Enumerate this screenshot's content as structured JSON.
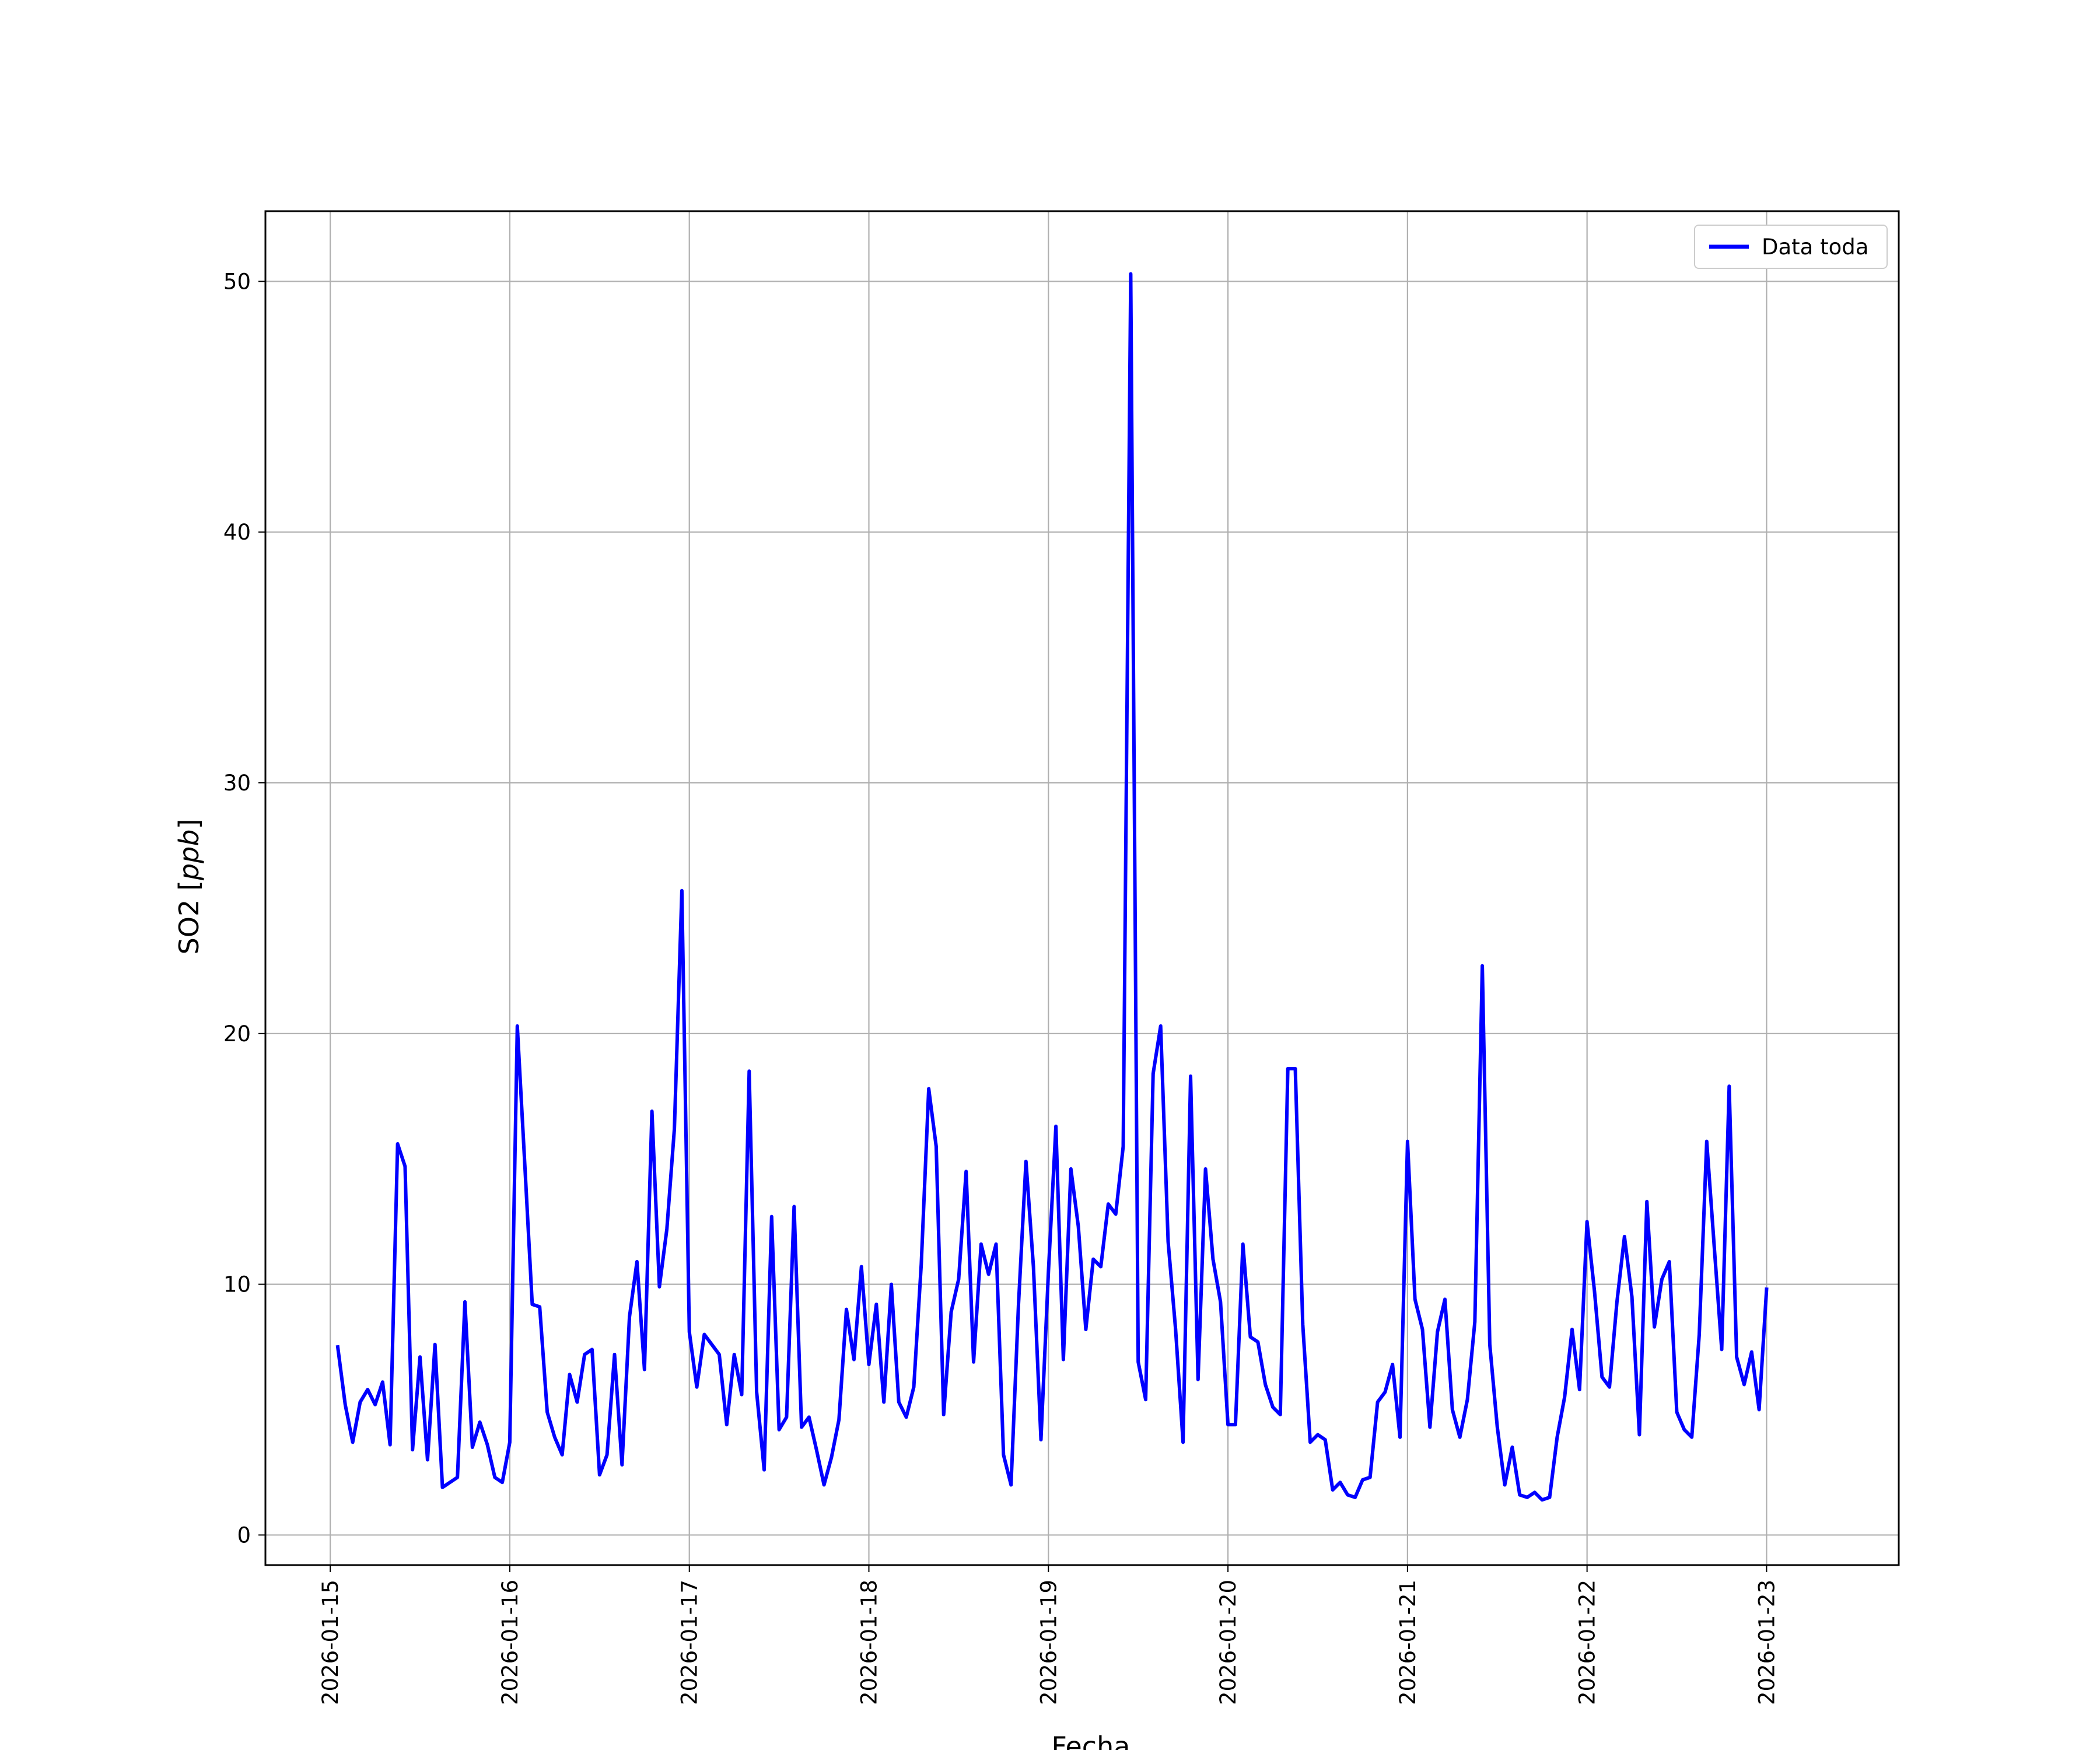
{
  "chart_data": {
    "type": "line",
    "xlabel": "Fecha",
    "ylabel": "SO2 [ppb]",
    "ylabel_text": "SO2 [",
    "ylabel_unit": "ppb",
    "ylabel_close": "]",
    "x_ticks": [
      "2026-01-15",
      "2026-01-16",
      "2026-01-17",
      "2026-01-18",
      "2026-01-19",
      "2026-01-20",
      "2026-01-21",
      "2026-01-22",
      "2026-01-23"
    ],
    "y_ticks": [
      0,
      10,
      20,
      30,
      40,
      50
    ],
    "xlim": [
      "2026-01-14T15:20",
      "2026-01-23T17:40"
    ],
    "ylim": [
      -1.2,
      52.8
    ],
    "grid": true,
    "legend": {
      "position": "top-right",
      "entries": [
        "Data toda"
      ]
    },
    "series": [
      {
        "name": "Data toda",
        "color": "#0000ff",
        "x_start": "2026-01-15T01:00",
        "step_hours": 1,
        "values": [
          7.5,
          5.2,
          3.7,
          5.3,
          5.8,
          5.2,
          6.1,
          3.6,
          15.6,
          14.7,
          3.4,
          7.1,
          3.0,
          7.6,
          1.9,
          2.1,
          2.3,
          9.3,
          3.5,
          4.5,
          3.6,
          2.3,
          2.1,
          3.7,
          20.3,
          14.8,
          9.2,
          9.1,
          4.9,
          3.9,
          3.2,
          6.4,
          5.3,
          7.2,
          7.4,
          2.4,
          3.2,
          7.2,
          2.8,
          8.7,
          10.9,
          6.6,
          16.9,
          9.9,
          12.2,
          16.2,
          25.7,
          8.1,
          5.9,
          8.0,
          7.6,
          7.2,
          4.4,
          7.2,
          5.6,
          18.5,
          5.7,
          2.6,
          12.7,
          4.2,
          4.7,
          13.1,
          4.3,
          4.7,
          3.4,
          2.0,
          3.1,
          4.6,
          9.0,
          7.0,
          10.7,
          6.8,
          9.2,
          5.3,
          10.0,
          5.3,
          4.7,
          5.9,
          10.8,
          17.8,
          15.5,
          4.8,
          8.9,
          10.2,
          14.5,
          6.9,
          11.6,
          10.4,
          11.6,
          3.2,
          2.0,
          9.2,
          14.9,
          10.7,
          3.8,
          10.5,
          16.3,
          7.0,
          14.6,
          12.3,
          8.2,
          11.0,
          10.7,
          13.2,
          12.8,
          15.5,
          50.3,
          6.9,
          5.4,
          18.4,
          20.3,
          11.7,
          8.2,
          3.7,
          18.3,
          6.2,
          14.6,
          11.0,
          9.3,
          4.4,
          4.4,
          11.6,
          7.9,
          7.7,
          6.0,
          5.1,
          4.8,
          18.6,
          18.6,
          8.4,
          3.7,
          4.0,
          3.8,
          1.8,
          2.1,
          1.6,
          1.5,
          2.2,
          2.3,
          5.3,
          5.7,
          6.8,
          3.9,
          15.7,
          9.4,
          8.2,
          4.3,
          8.1,
          9.4,
          5.0,
          3.9,
          5.4,
          8.5,
          22.7,
          7.6,
          4.3,
          2.0,
          3.5,
          1.6,
          1.5,
          1.7,
          1.4,
          1.5,
          3.9,
          5.5,
          8.2,
          5.8,
          12.5,
          9.7,
          6.3,
          5.9,
          9.3,
          11.9,
          9.5,
          4.0,
          13.3,
          8.3,
          10.2,
          10.9,
          4.9,
          4.2,
          3.9,
          8.0,
          15.7,
          11.5,
          7.4,
          17.9,
          7.1,
          6.0,
          7.3,
          5.0,
          9.8
        ]
      }
    ]
  }
}
